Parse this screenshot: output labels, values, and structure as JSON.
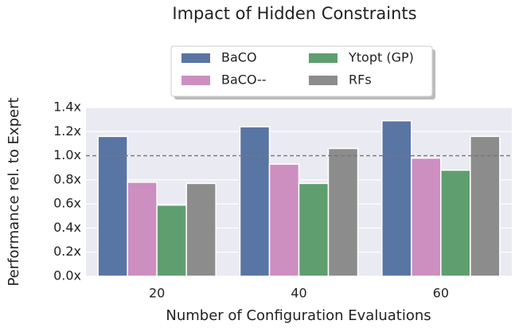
{
  "chart_data": {
    "type": "bar",
    "title": "Impact of Hidden Constraints",
    "x_label": "Number of Configuration Evaluations",
    "y_label": "Performance rel. to Expert",
    "categories": [
      "20",
      "40",
      "60"
    ],
    "series": [
      {
        "name": "BaCO",
        "color": "#5975a4",
        "values": [
          1.16,
          1.24,
          1.29
        ]
      },
      {
        "name": "BaCO--",
        "color": "#cc8fc0",
        "values": [
          0.78,
          0.93,
          0.98
        ]
      },
      {
        "name": "Ytopt (GP)",
        "color": "#5f9e6e",
        "values": [
          0.59,
          0.77,
          0.88
        ]
      },
      {
        "name": "RFs",
        "color": "#8c8c8c",
        "values": [
          0.77,
          1.06,
          1.16
        ]
      }
    ],
    "ylim": [
      0,
      1.4
    ],
    "yticks": [
      {
        "value": 0,
        "label": "0.0x"
      },
      {
        "value": 0.2,
        "label": "0.2x"
      },
      {
        "value": 0.4,
        "label": "0.4x"
      },
      {
        "value": 0.6,
        "label": "0.6x"
      },
      {
        "value": 0.8,
        "label": "0.8x"
      },
      {
        "value": 1.0,
        "label": "1.0x"
      },
      {
        "value": 1.2,
        "label": "1.2x"
      },
      {
        "value": 1.4,
        "label": "1.4x"
      }
    ],
    "reference_line": 1.0,
    "grid": true,
    "legend": "top"
  }
}
